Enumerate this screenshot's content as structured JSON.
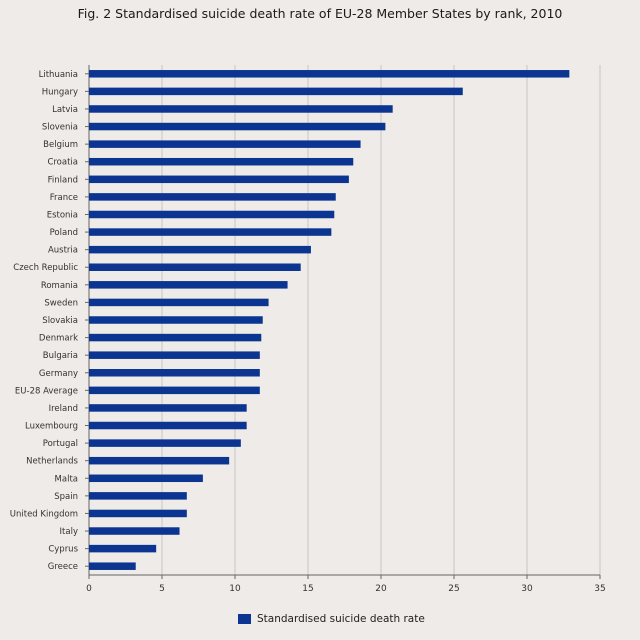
{
  "chart_data": {
    "type": "bar",
    "orientation": "horizontal",
    "title": "Fig. 2 Standardised suicide death rate of EU-28 Member States by rank, 2010",
    "xlabel": "",
    "ylabel": "",
    "xlim": [
      0,
      35
    ],
    "xticks": [
      "0",
      "5",
      "10",
      "15",
      "20",
      "25",
      "30",
      "35"
    ],
    "grid": true,
    "legend_position": "bottom",
    "bar_color": "#0b3590",
    "categories": [
      "Lithuania",
      "Hungary",
      "Latvia",
      "Slovenia",
      "Belgium",
      "Croatia",
      "Finland",
      "France",
      "Estonia",
      "Poland",
      "Austria",
      "Czech Republic",
      "Romania",
      "Sweden",
      "Slovakia",
      "Denmark",
      "Bulgaria",
      "Germany",
      "EU-28 Average",
      "Ireland",
      "Luxembourg",
      "Portugal",
      "Netherlands",
      "Malta",
      "Spain",
      "United Kingdom",
      "Italy",
      "Cyprus",
      "Greece"
    ],
    "series": [
      {
        "name": "Standardised suicide death rate",
        "values": [
          32.9,
          25.6,
          20.8,
          20.3,
          18.6,
          18.1,
          17.8,
          16.9,
          16.8,
          16.6,
          15.2,
          14.5,
          13.6,
          12.3,
          11.9,
          11.8,
          11.7,
          11.7,
          11.7,
          10.8,
          10.8,
          10.4,
          9.6,
          7.8,
          6.7,
          6.7,
          6.2,
          4.6,
          3.2
        ]
      }
    ]
  }
}
